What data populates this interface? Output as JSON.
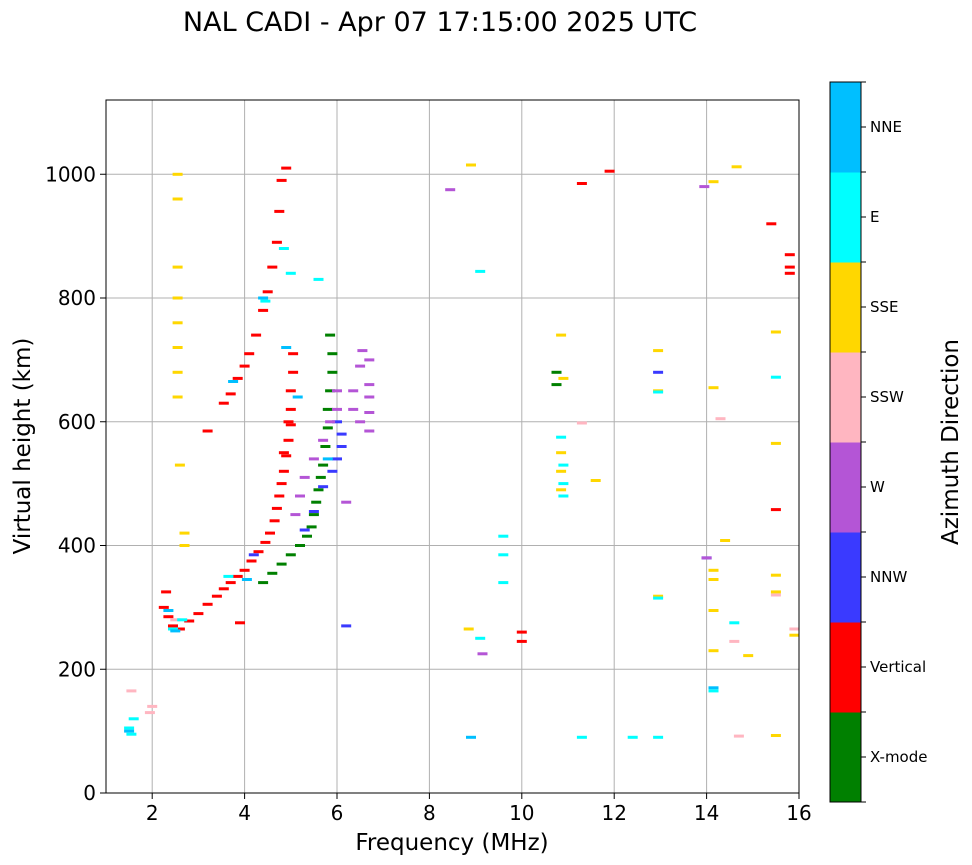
{
  "chart_data": {
    "type": "scatter",
    "title": "NAL CADI - Apr 07 17:15:00 2025 UTC",
    "xlabel": "Frequency (MHz)",
    "ylabel": "Virtual height (km)",
    "xlim": [
      1,
      16
    ],
    "ylim": [
      0,
      1120
    ],
    "x_ticks": [
      2,
      4,
      6,
      8,
      10,
      12,
      14,
      16
    ],
    "y_ticks": [
      0,
      200,
      400,
      600,
      800,
      1000
    ],
    "grid": true,
    "colorbar": {
      "label": "Azimuth Direction",
      "categories": [
        {
          "name": "X-mode",
          "color": "#008000"
        },
        {
          "name": "Vertical",
          "color": "#ff0000"
        },
        {
          "name": "NNW",
          "color": "#3a3aff"
        },
        {
          "name": "W",
          "color": "#b455d6"
        },
        {
          "name": "SSW",
          "color": "#ffb6c1"
        },
        {
          "name": "SSE",
          "color": "#ffd700"
        },
        {
          "name": "E",
          "color": "#00ffff"
        },
        {
          "name": "NNE",
          "color": "#00bfff"
        }
      ]
    },
    "series": [
      {
        "name": "Vertical",
        "points": [
          [
            2.25,
            300
          ],
          [
            2.35,
            285
          ],
          [
            2.45,
            270
          ],
          [
            2.6,
            265
          ],
          [
            2.8,
            278
          ],
          [
            3.0,
            290
          ],
          [
            3.2,
            305
          ],
          [
            3.4,
            318
          ],
          [
            3.55,
            330
          ],
          [
            3.7,
            340
          ],
          [
            3.85,
            350
          ],
          [
            4.0,
            360
          ],
          [
            4.15,
            375
          ],
          [
            4.3,
            390
          ],
          [
            4.45,
            405
          ],
          [
            4.55,
            420
          ],
          [
            4.65,
            440
          ],
          [
            4.7,
            460
          ],
          [
            4.75,
            480
          ],
          [
            4.8,
            500
          ],
          [
            4.85,
            520
          ],
          [
            4.9,
            545
          ],
          [
            4.95,
            570
          ],
          [
            5.0,
            595
          ],
          [
            5.0,
            620
          ],
          [
            5.0,
            650
          ],
          [
            5.05,
            680
          ],
          [
            5.05,
            710
          ],
          [
            3.55,
            630
          ],
          [
            3.7,
            645
          ],
          [
            3.85,
            670
          ],
          [
            4.0,
            690
          ],
          [
            4.1,
            710
          ],
          [
            4.25,
            740
          ],
          [
            4.4,
            780
          ],
          [
            4.5,
            810
          ],
          [
            4.6,
            850
          ],
          [
            4.7,
            890
          ],
          [
            4.75,
            940
          ],
          [
            4.8,
            990
          ],
          [
            4.9,
            1010
          ],
          [
            3.2,
            585
          ],
          [
            3.9,
            275
          ],
          [
            10.0,
            260
          ],
          [
            10.0,
            245
          ],
          [
            11.3,
            985
          ],
          [
            11.9,
            1005
          ],
          [
            15.4,
            920
          ],
          [
            15.8,
            870
          ],
          [
            15.8,
            850
          ],
          [
            15.8,
            840
          ],
          [
            15.5,
            458
          ],
          [
            4.85,
            550
          ],
          [
            4.95,
            600
          ],
          [
            2.3,
            325
          ]
        ]
      },
      {
        "name": "X-mode",
        "points": [
          [
            4.4,
            340
          ],
          [
            4.6,
            355
          ],
          [
            4.8,
            370
          ],
          [
            5.0,
            385
          ],
          [
            5.2,
            400
          ],
          [
            5.35,
            415
          ],
          [
            5.45,
            430
          ],
          [
            5.5,
            450
          ],
          [
            5.55,
            470
          ],
          [
            5.6,
            490
          ],
          [
            5.65,
            510
          ],
          [
            5.7,
            530
          ],
          [
            5.75,
            560
          ],
          [
            5.8,
            590
          ],
          [
            5.8,
            620
          ],
          [
            5.85,
            650
          ],
          [
            5.9,
            680
          ],
          [
            5.9,
            710
          ],
          [
            5.85,
            740
          ],
          [
            10.75,
            680
          ],
          [
            10.75,
            660
          ]
        ]
      },
      {
        "name": "NNW",
        "points": [
          [
            4.2,
            385
          ],
          [
            5.3,
            425
          ],
          [
            5.5,
            455
          ],
          [
            5.7,
            495
          ],
          [
            5.9,
            520
          ],
          [
            6.0,
            540
          ],
          [
            6.1,
            560
          ],
          [
            6.1,
            580
          ],
          [
            6.0,
            600
          ],
          [
            6.2,
            270
          ],
          [
            12.95,
            680
          ],
          [
            14.0,
            380
          ]
        ]
      },
      {
        "name": "W",
        "points": [
          [
            5.1,
            450
          ],
          [
            5.2,
            480
          ],
          [
            5.3,
            510
          ],
          [
            5.5,
            540
          ],
          [
            5.7,
            570
          ],
          [
            5.85,
            600
          ],
          [
            6.0,
            620
          ],
          [
            6.0,
            650
          ],
          [
            6.35,
            620
          ],
          [
            6.35,
            650
          ],
          [
            6.5,
            600
          ],
          [
            6.5,
            690
          ],
          [
            6.55,
            715
          ],
          [
            6.7,
            585
          ],
          [
            6.7,
            615
          ],
          [
            6.7,
            640
          ],
          [
            6.7,
            660
          ],
          [
            6.7,
            700
          ],
          [
            6.2,
            470
          ],
          [
            8.45,
            975
          ],
          [
            9.15,
            225
          ],
          [
            14.0,
            380
          ],
          [
            13.95,
            980
          ]
        ]
      },
      {
        "name": "SSW",
        "points": [
          [
            1.55,
            165
          ],
          [
            1.95,
            130
          ],
          [
            2.0,
            140
          ],
          [
            11.3,
            598
          ],
          [
            14.3,
            605
          ],
          [
            14.6,
            245
          ],
          [
            14.7,
            92
          ],
          [
            15.5,
            320
          ],
          [
            15.9,
            265
          ],
          [
            2.5,
            280
          ]
        ]
      },
      {
        "name": "SSE",
        "points": [
          [
            2.55,
            1000
          ],
          [
            2.55,
            960
          ],
          [
            2.55,
            850
          ],
          [
            2.55,
            800
          ],
          [
            2.55,
            760
          ],
          [
            2.55,
            720
          ],
          [
            2.55,
            680
          ],
          [
            2.55,
            640
          ],
          [
            2.6,
            530
          ],
          [
            2.7,
            420
          ],
          [
            2.7,
            400
          ],
          [
            8.9,
            1015
          ],
          [
            8.85,
            265
          ],
          [
            10.85,
            740
          ],
          [
            10.9,
            670
          ],
          [
            10.85,
            550
          ],
          [
            10.85,
            520
          ],
          [
            10.85,
            490
          ],
          [
            11.6,
            505
          ],
          [
            12.95,
            715
          ],
          [
            12.95,
            650
          ],
          [
            12.95,
            318
          ],
          [
            14.15,
            988
          ],
          [
            14.15,
            655
          ],
          [
            14.15,
            360
          ],
          [
            14.15,
            345
          ],
          [
            14.15,
            295
          ],
          [
            14.15,
            230
          ],
          [
            14.4,
            408
          ],
          [
            14.65,
            1012
          ],
          [
            14.9,
            222
          ],
          [
            15.5,
            745
          ],
          [
            15.5,
            565
          ],
          [
            15.5,
            352
          ],
          [
            15.5,
            325
          ],
          [
            15.5,
            93
          ],
          [
            15.9,
            255
          ]
        ]
      },
      {
        "name": "E",
        "points": [
          [
            1.5,
            105
          ],
          [
            1.55,
            95
          ],
          [
            1.6,
            120
          ],
          [
            2.45,
            265
          ],
          [
            2.65,
            280
          ],
          [
            3.65,
            350
          ],
          [
            4.45,
            795
          ],
          [
            4.85,
            880
          ],
          [
            5.0,
            840
          ],
          [
            5.6,
            830
          ],
          [
            9.1,
            843
          ],
          [
            9.1,
            250
          ],
          [
            9.6,
            415
          ],
          [
            9.6,
            385
          ],
          [
            9.6,
            340
          ],
          [
            10.85,
            575
          ],
          [
            10.9,
            530
          ],
          [
            10.9,
            500
          ],
          [
            10.9,
            480
          ],
          [
            12.95,
            648
          ],
          [
            12.95,
            315
          ],
          [
            12.95,
            90
          ],
          [
            12.4,
            90
          ],
          [
            14.15,
            165
          ],
          [
            14.6,
            275
          ],
          [
            15.5,
            672
          ],
          [
            11.3,
            90
          ]
        ]
      },
      {
        "name": "NNE",
        "points": [
          [
            1.5,
            100
          ],
          [
            2.35,
            295
          ],
          [
            2.5,
            262
          ],
          [
            3.75,
            665
          ],
          [
            4.05,
            345
          ],
          [
            4.4,
            800
          ],
          [
            4.9,
            720
          ],
          [
            5.15,
            640
          ],
          [
            5.8,
            540
          ],
          [
            8.9,
            90
          ],
          [
            14.15,
            170
          ]
        ]
      }
    ]
  }
}
